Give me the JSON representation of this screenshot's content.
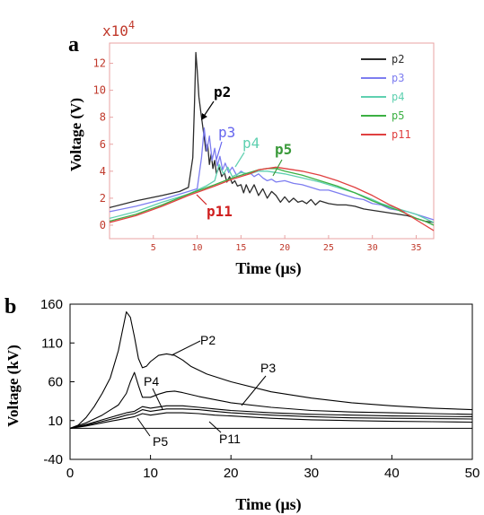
{
  "chart_data": [
    {
      "panel_label": "a",
      "type": "line",
      "xlabel": "Time (μs)",
      "ylabel": "Voltage (V)",
      "y_multiplier": "x10",
      "y_multiplier_exp": "4",
      "xlim": [
        0,
        37
      ],
      "ylim": [
        -1,
        13.5
      ],
      "xticks": [
        5,
        10,
        15,
        20,
        25,
        30,
        35
      ],
      "yticks": [
        0,
        2,
        4,
        6,
        8,
        10,
        12
      ],
      "grid": false,
      "legend_position": "top-right",
      "axis_color": "#e8a3a3",
      "tick_label_color": "#c0392b",
      "series": [
        {
          "name": "p2",
          "color": "#2b2b2b",
          "x": [
            0,
            3,
            6,
            8,
            9,
            9.5,
            9.7,
            9.85,
            10,
            10.2,
            10.5,
            10.8,
            11,
            11.2,
            11.4,
            11.6,
            11.8,
            12.0,
            12.2,
            12.5,
            12.8,
            13.1,
            13.4,
            13.7,
            14,
            14.3,
            14.6,
            15,
            15.3,
            15.6,
            16,
            16.5,
            17,
            17.5,
            18,
            18.5,
            19,
            19.5,
            20,
            20.5,
            21,
            21.5,
            22,
            22.5,
            23,
            23.5,
            24,
            25,
            26,
            27,
            28,
            29,
            30,
            31,
            32,
            33,
            34,
            35,
            36,
            37
          ],
          "y": [
            1.3,
            1.8,
            2.2,
            2.5,
            2.8,
            5,
            9,
            12.8,
            11.5,
            9.5,
            8,
            6.5,
            5.5,
            6,
            4.5,
            5.3,
            4.2,
            4.8,
            3.8,
            4.3,
            3.6,
            3.9,
            3.2,
            3.6,
            3.1,
            3.3,
            2.9,
            3.0,
            2.4,
            3.0,
            2.4,
            3.0,
            2.2,
            2.7,
            2.0,
            2.5,
            2.2,
            1.7,
            2.1,
            1.7,
            2.0,
            1.7,
            1.8,
            1.6,
            1.9,
            1.5,
            1.8,
            1.6,
            1.5,
            1.5,
            1.4,
            1.2,
            1.1,
            1.0,
            0.9,
            0.8,
            0.7,
            0.5,
            0.3,
            0.2
          ]
        },
        {
          "name": "p3",
          "color": "#7d7df0",
          "x": [
            0,
            3,
            6,
            8,
            10,
            10.5,
            10.8,
            11.1,
            11.4,
            11.7,
            12,
            12.3,
            12.6,
            12.9,
            13.2,
            13.6,
            14,
            14.5,
            15,
            15.5,
            16,
            16.5,
            17,
            17.5,
            18,
            18.5,
            19,
            20,
            21,
            22,
            23,
            24,
            25,
            26,
            27,
            28,
            29,
            30,
            31,
            32,
            33,
            34,
            35,
            36,
            37
          ],
          "y": [
            1.0,
            1.4,
            1.9,
            2.3,
            2.7,
            5.0,
            7.2,
            5.5,
            6.6,
            4.8,
            5.7,
            4.4,
            5.1,
            4.1,
            4.6,
            3.9,
            4.3,
            3.7,
            4.0,
            3.8,
            3.9,
            3.6,
            3.8,
            3.5,
            3.3,
            3.4,
            3.2,
            3.3,
            3.1,
            3.0,
            2.8,
            2.6,
            2.6,
            2.4,
            2.2,
            2.0,
            1.9,
            1.6,
            1.5,
            1.2,
            1.1,
            1.0,
            0.8,
            0.6,
            0.4
          ]
        },
        {
          "name": "p4",
          "color": "#5fd0b0",
          "x": [
            0,
            3,
            6,
            9,
            11,
            12,
            12.5,
            13,
            13.5,
            14,
            15,
            16,
            17,
            18,
            19,
            20,
            22,
            24,
            26,
            28,
            30,
            31,
            32,
            33,
            34,
            35,
            36,
            37
          ],
          "y": [
            0.5,
            1.0,
            1.7,
            2.3,
            2.9,
            3.3,
            4.5,
            3.8,
            4.3,
            3.6,
            3.9,
            3.8,
            4.0,
            4.0,
            3.9,
            3.8,
            3.5,
            3.2,
            2.8,
            2.4,
            1.9,
            1.6,
            1.4,
            1.2,
            1.0,
            0.8,
            0.5,
            0.2
          ]
        },
        {
          "name": "p5",
          "color": "#3cb043",
          "x": [
            0,
            3,
            6,
            9,
            12,
            14,
            15,
            16,
            17,
            18,
            19,
            20,
            22,
            24,
            26,
            28,
            30,
            32,
            33,
            34,
            35,
            36,
            37
          ],
          "y": [
            0.3,
            0.8,
            1.5,
            2.3,
            3.0,
            3.5,
            3.7,
            3.9,
            4.1,
            4.2,
            4.2,
            4.0,
            3.7,
            3.3,
            2.9,
            2.4,
            1.8,
            1.3,
            1.1,
            0.8,
            0.5,
            0.3,
            0.0
          ]
        },
        {
          "name": "p11",
          "color": "#e04040",
          "x": [
            0,
            3,
            6,
            9,
            12,
            14,
            16,
            17,
            18,
            19,
            20,
            21,
            22,
            24,
            26,
            28,
            30,
            32,
            33,
            34,
            35,
            36,
            37
          ],
          "y": [
            0.2,
            0.7,
            1.4,
            2.2,
            2.9,
            3.4,
            3.8,
            4.1,
            4.2,
            4.3,
            4.2,
            4.1,
            4.0,
            3.7,
            3.3,
            2.8,
            2.2,
            1.5,
            1.2,
            0.8,
            0.4,
            0.0,
            -0.4
          ]
        }
      ],
      "annotations": [
        "p2",
        "p3",
        "p4",
        "p5",
        "p11"
      ]
    },
    {
      "panel_label": "b",
      "type": "line",
      "xlabel": "Time (μs)",
      "ylabel": "Voltage (kV)",
      "xlim": [
        0,
        50
      ],
      "ylim": [
        -40,
        160
      ],
      "xticks": [
        0,
        10,
        20,
        30,
        40,
        50
      ],
      "yticks": [
        -40,
        10,
        60,
        110,
        160
      ],
      "grid": false,
      "series_color": "#000000",
      "series": [
        {
          "name": "P2",
          "x": [
            0,
            1,
            2,
            3,
            4,
            5,
            6,
            6.5,
            7,
            7.5,
            8,
            8.5,
            9,
            9.5,
            10,
            11,
            12,
            13,
            14,
            15,
            17,
            20,
            25,
            30,
            35,
            40,
            45,
            50
          ],
          "y": [
            0,
            4,
            14,
            28,
            45,
            65,
            100,
            125,
            150,
            143,
            118,
            90,
            78,
            80,
            86,
            94,
            96,
            94,
            88,
            80,
            70,
            60,
            47,
            39,
            33,
            29,
            26,
            24
          ]
        },
        {
          "name": "P3",
          "x": [
            0,
            2,
            4,
            6,
            7,
            7.5,
            8,
            8.5,
            9,
            10,
            11,
            12,
            13,
            14,
            16,
            18,
            20,
            25,
            30,
            35,
            40,
            45,
            50
          ],
          "y": [
            0,
            7,
            17,
            30,
            45,
            60,
            72,
            55,
            40,
            40,
            44,
            47,
            48,
            46,
            41,
            37,
            33,
            27,
            23,
            21,
            20,
            19,
            18
          ]
        },
        {
          "name": "P4",
          "x": [
            0,
            2,
            4,
            6,
            7,
            8,
            9,
            10,
            12,
            14,
            16,
            18,
            20,
            25,
            30,
            35,
            40,
            45,
            50
          ],
          "y": [
            0,
            5,
            11,
            17,
            20,
            22,
            28,
            26,
            29,
            29,
            27,
            25,
            23,
            20,
            18,
            17,
            16,
            15.5,
            15
          ]
        },
        {
          "name": "P5",
          "x": [
            0,
            2,
            4,
            6,
            7,
            8,
            9,
            10,
            12,
            14,
            16,
            18,
            20,
            25,
            30,
            35,
            40,
            45,
            50
          ],
          "y": [
            0,
            4,
            9,
            14,
            17,
            19,
            24,
            22,
            25,
            25,
            24,
            22,
            20,
            17,
            15,
            13.5,
            13,
            12.5,
            12
          ]
        },
        {
          "name": "P11",
          "x": [
            0,
            2,
            4,
            6,
            7,
            8,
            9,
            10,
            12,
            14,
            16,
            18,
            20,
            25,
            30,
            35,
            40,
            45,
            50
          ],
          "y": [
            0,
            3,
            7,
            11,
            13,
            15,
            19,
            17,
            20,
            20,
            19,
            17,
            16,
            13,
            11,
            10,
            9,
            8.5,
            8
          ]
        }
      ],
      "baseline": {
        "x": [
          0,
          50
        ],
        "y": [
          0,
          0
        ]
      },
      "annotations": [
        "P2",
        "P3",
        "P4",
        "P5",
        "P11"
      ]
    }
  ]
}
